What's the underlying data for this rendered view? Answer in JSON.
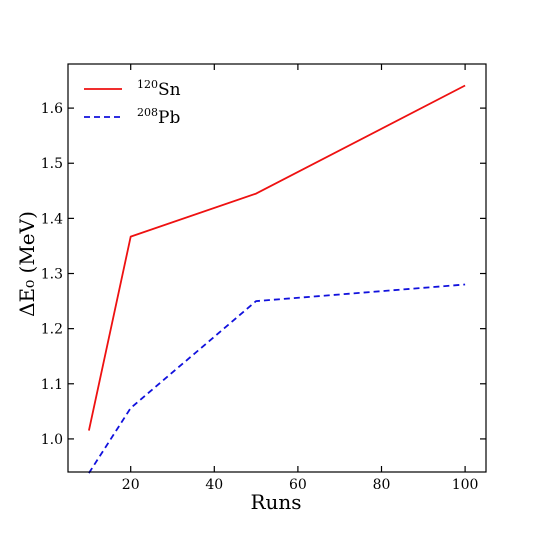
{
  "chart_data": {
    "type": "line",
    "xlabel": "Runs",
    "ylabel": "ΔE₀ (MeV)",
    "xlim": [
      5,
      105
    ],
    "ylim": [
      0.94,
      1.68
    ],
    "xticks": [
      20,
      40,
      60,
      80,
      100
    ],
    "yticks": [
      1.0,
      1.1,
      1.2,
      1.3,
      1.4,
      1.5,
      1.6
    ],
    "xtick_labels": [
      "20",
      "40",
      "60",
      "80",
      "100"
    ],
    "ytick_labels": [
      "1.0",
      "1.1",
      "1.2",
      "1.3",
      "1.4",
      "1.5",
      "1.6"
    ],
    "grid": false,
    "legend_position": "top-left",
    "series": [
      {
        "name_mass": "120",
        "name_element": "Sn",
        "color": "#ee1111",
        "style": "solid",
        "x": [
          10,
          20,
          50,
          100
        ],
        "y": [
          1.015,
          1.367,
          1.445,
          1.641
        ]
      },
      {
        "name_mass": "208",
        "name_element": "Pb",
        "color": "#1111dd",
        "style": "dashed",
        "x": [
          10,
          20,
          50,
          100
        ],
        "y": [
          0.938,
          1.056,
          1.25,
          1.28
        ]
      }
    ]
  }
}
